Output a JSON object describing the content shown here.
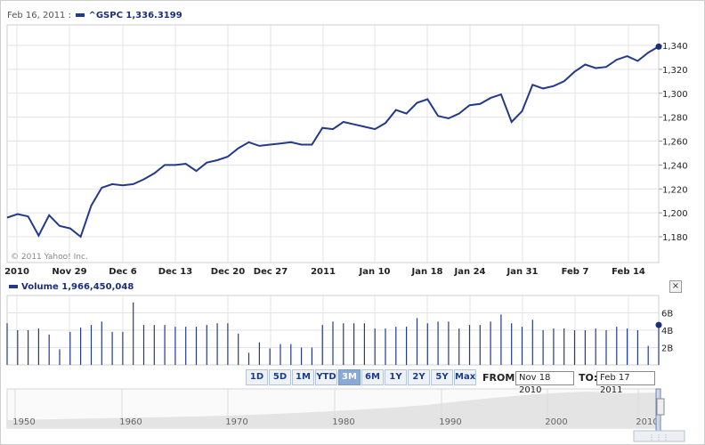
{
  "header": {
    "date": "Feb 16, 2011 :",
    "symbol": "^GSPC",
    "value": "1,336.3199"
  },
  "volume_header": {
    "label": "Volume",
    "value": "1,966,450,048"
  },
  "copyright": "© 2011 Yahoo! Inc.",
  "colors": {
    "line": "#233a8b",
    "grid": "#e3e3e3",
    "axis": "#999999"
  },
  "close_icon": "close-icon",
  "range_buttons": [
    "1D",
    "5D",
    "1M",
    "YTD",
    "3M",
    "6M",
    "1Y",
    "2Y",
    "5Y",
    "Max"
  ],
  "active_range": "3M",
  "from_label": "FROM:",
  "from_value": "Nov 18 2010",
  "to_label": "TO:",
  "to_value": "Feb 17 2011",
  "navigator": {
    "years": [
      "1950",
      "1960",
      "1970",
      "1980",
      "1990",
      "2000",
      "2010"
    ]
  },
  "chart_data": [
    {
      "type": "line",
      "series": [
        {
          "name": "^GSPC",
          "values": [
            1196,
            1199,
            1197,
            1181,
            1198,
            1189,
            1187,
            1180,
            1206,
            1221,
            1224,
            1223,
            1224,
            1228,
            1233,
            1240,
            1240,
            1241,
            1235,
            1242,
            1244,
            1247,
            1254,
            1259,
            1256,
            1257,
            1258,
            1259,
            1257,
            1257,
            1271,
            1270,
            1276,
            1274,
            1272,
            1270,
            1275,
            1286,
            1283,
            1292,
            1295,
            1281,
            1279,
            1283,
            1290,
            1291,
            1296,
            1299,
            1276,
            1285,
            1307,
            1304,
            1306,
            1310,
            1318,
            1324,
            1321,
            1322,
            1328,
            1331,
            1327,
            1334,
            1339
          ]
        }
      ],
      "y_ticks": [
        "1,180",
        "1,200",
        "1,220",
        "1,240",
        "1,260",
        "1,280",
        "1,300",
        "1,320",
        "1,340"
      ],
      "ylim": [
        1170,
        1350
      ],
      "x_labels": [
        "2010",
        "Nov 29",
        "Dec 6",
        "Dec 13",
        "Dec 20",
        "Dec 27",
        "2011",
        "Jan 10",
        "Jan 18",
        "Jan 24",
        "Jan 31",
        "Feb 7",
        "Feb 14"
      ],
      "grid": true
    },
    {
      "type": "bar",
      "series": [
        {
          "name": "Volume",
          "values": [
            4.8,
            4.0,
            4.0,
            4.2,
            3.5,
            1.8,
            3.8,
            4.3,
            4.6,
            5.0,
            3.8,
            3.8,
            7.2,
            4.6,
            4.6,
            4.6,
            4.4,
            4.4,
            4.4,
            4.6,
            4.8,
            4.8,
            3.6,
            1.4,
            2.6,
            1.9,
            2.4,
            2.4,
            2.0,
            2.0,
            4.6,
            5.0,
            4.8,
            4.8,
            4.8,
            4.2,
            4.2,
            4.4,
            4.4,
            5.4,
            4.8,
            5.0,
            5.0,
            4.2,
            4.6,
            4.6,
            5.0,
            5.8,
            4.8,
            4.4,
            5.2,
            4.0,
            4.2,
            4.2,
            4.0,
            4.0,
            4.2,
            4.0,
            4.4,
            4.2,
            4.0,
            2.2,
            4.6
          ]
        }
      ],
      "y_ticks": [
        "2B",
        "4B",
        "6B"
      ],
      "ylim": [
        0,
        8
      ],
      "unit": "B"
    }
  ]
}
